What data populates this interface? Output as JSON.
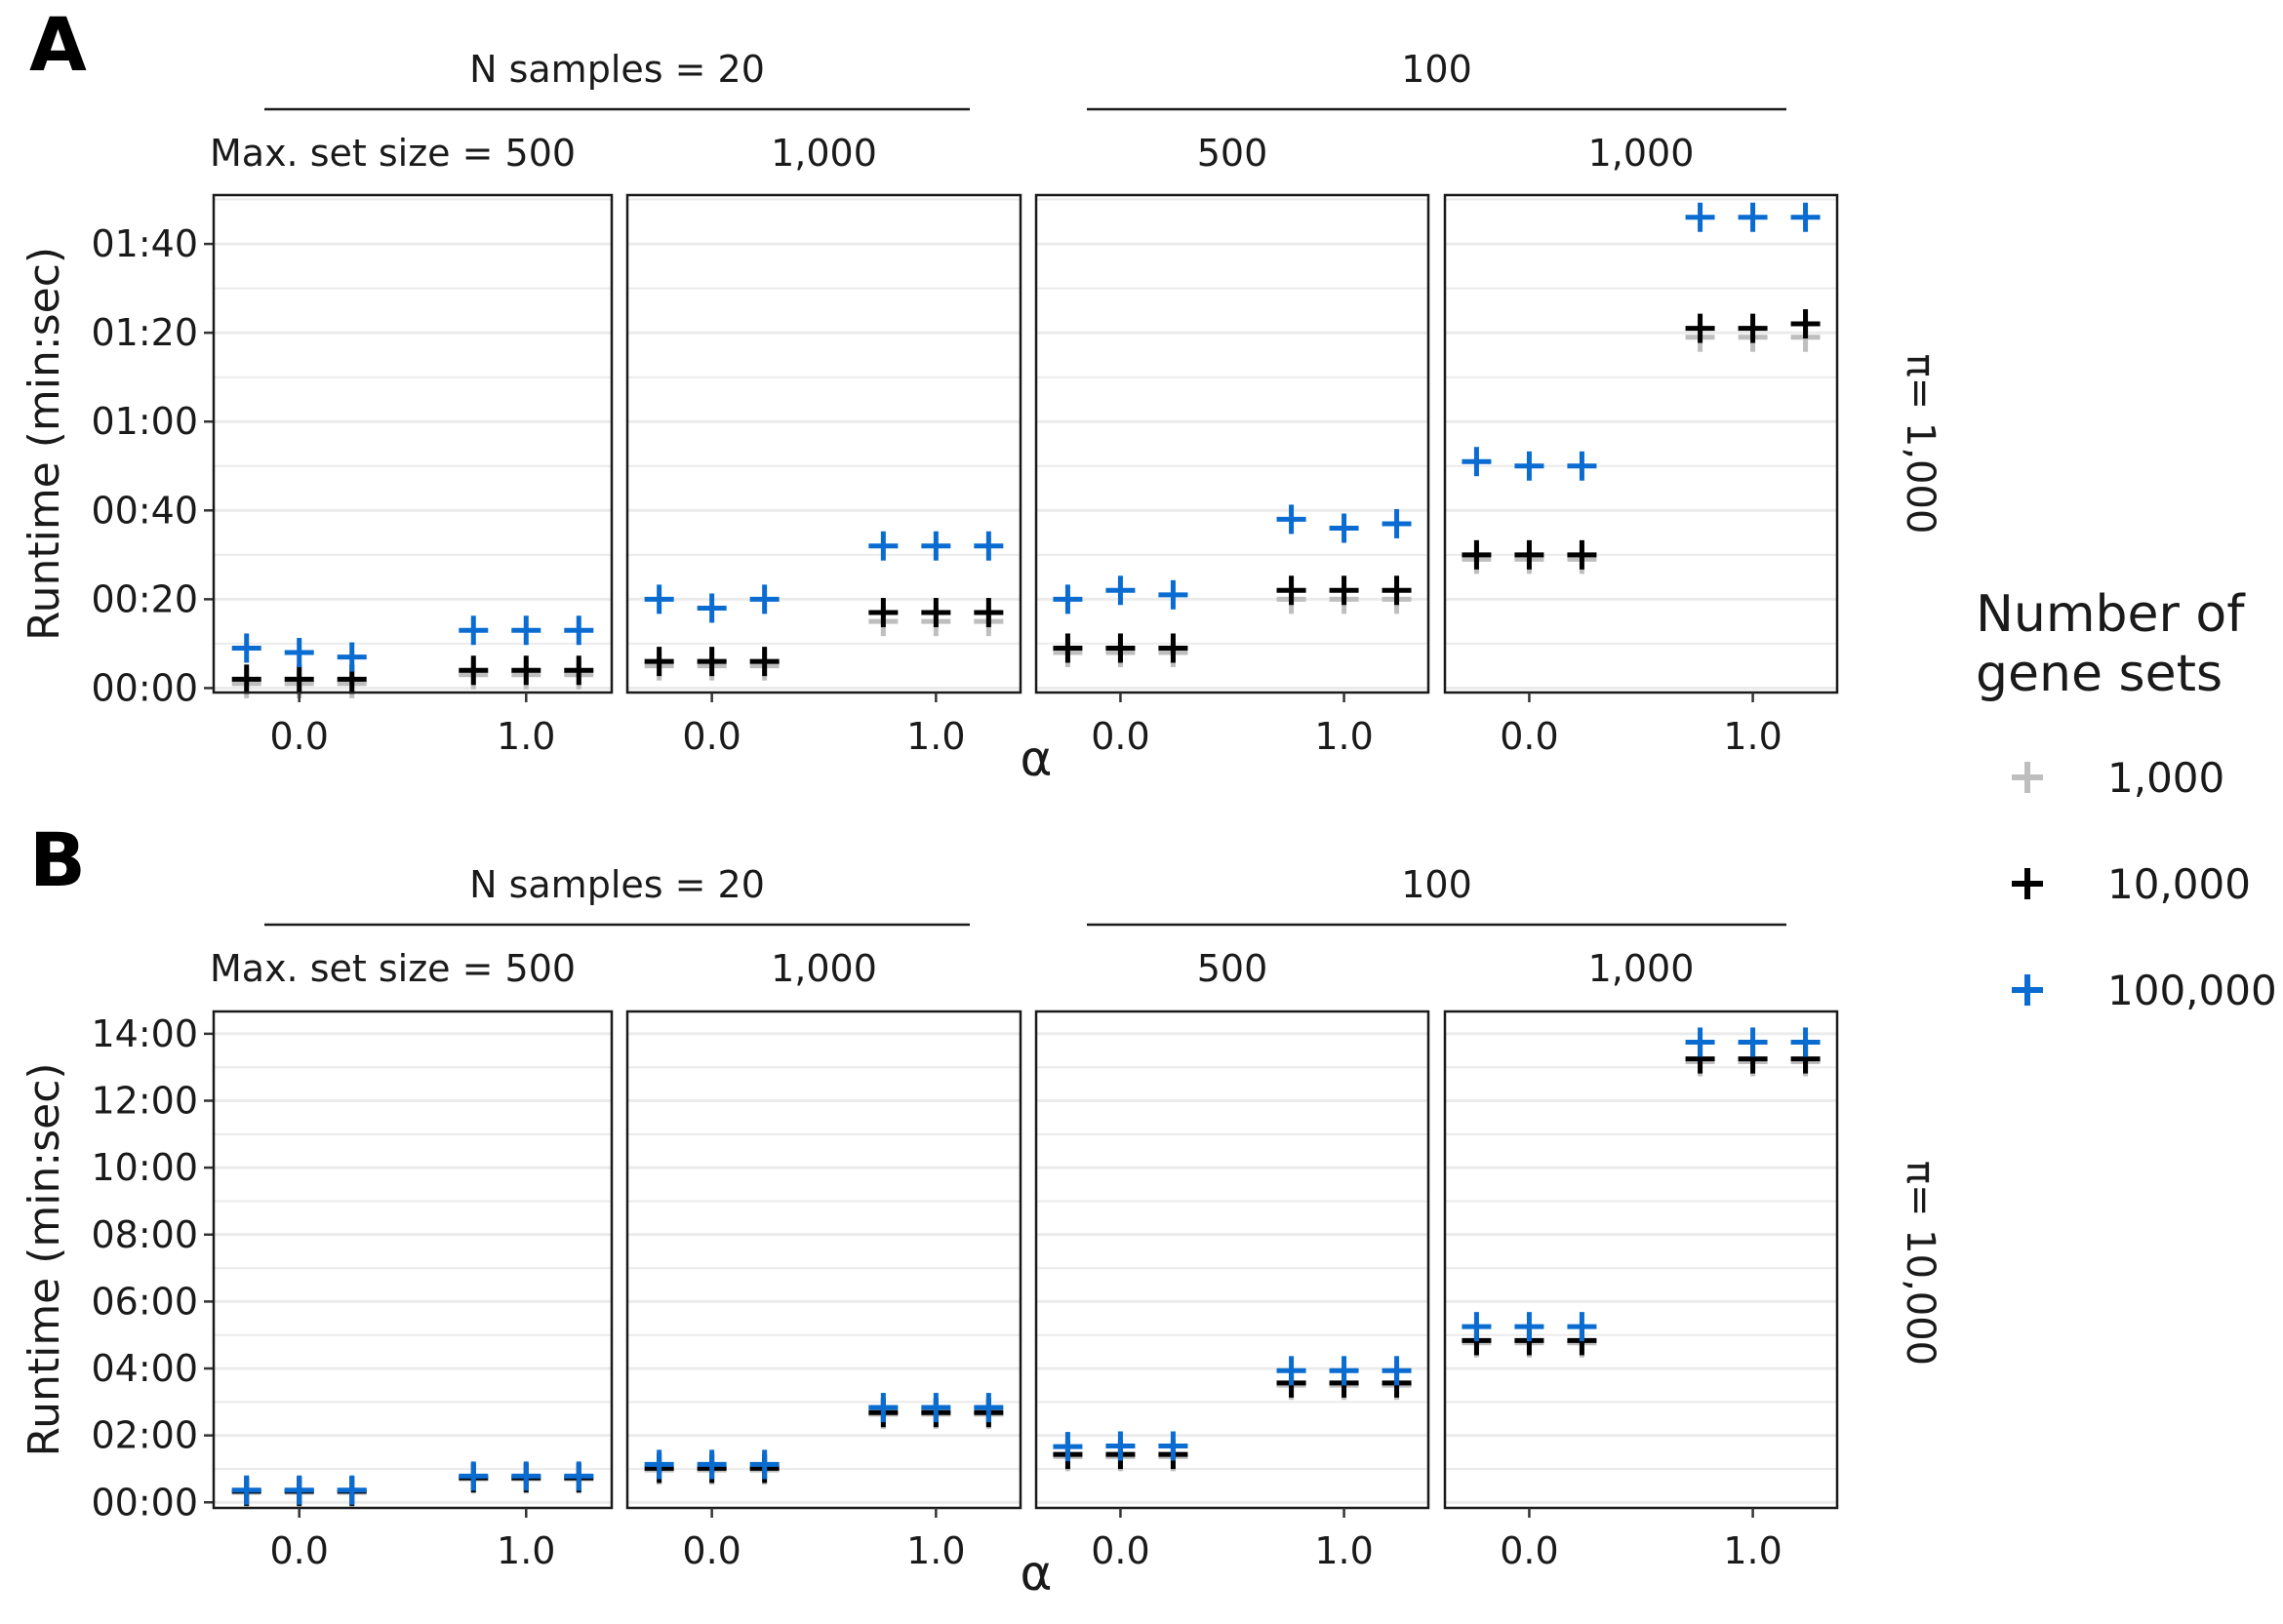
{
  "colors": {
    "1,000": "#bebebe",
    "10,000": "#000000",
    "100,000": "#0a6cd0",
    "grid": "#ebebeb",
    "panel_border": "#1a1a1a"
  },
  "legend": {
    "title_line1": "Number of",
    "title_line2": "gene sets",
    "entries": [
      {
        "label": "1,000",
        "color": "#bebebe"
      },
      {
        "label": "10,000",
        "color": "#000000"
      },
      {
        "label": "100,000",
        "color": "#0a6cd0"
      }
    ],
    "marker": "plus"
  },
  "chart_data": [
    {
      "type": "scatter",
      "panel_label": "A",
      "row_strip": "π= 1,000",
      "ylabel": "Runtime (min:sec)",
      "xlabel": "α",
      "y_unit": "seconds",
      "ylim": [
        -1,
        111
      ],
      "y_ticks": [
        0,
        20,
        40,
        60,
        80,
        100
      ],
      "y_tick_labels": [
        "00:00",
        "00:20",
        "00:40",
        "01:00",
        "01:20",
        "01:40"
      ],
      "x_categories": [
        "0.0",
        "1.0"
      ],
      "top_strips": [
        {
          "label": "N samples = 20",
          "facets": [
            0,
            1
          ]
        },
        {
          "label": "100",
          "facets": [
            2,
            3
          ]
        }
      ],
      "facets": [
        {
          "strip": "Max. set size = 500",
          "series": [
            {
              "name": "1,000",
              "points": [
                [
                  0.0,
                  1
                ],
                [
                  0.0,
                  1
                ],
                [
                  0.0,
                  1
                ],
                [
                  1.0,
                  3
                ],
                [
                  1.0,
                  3
                ],
                [
                  1.0,
                  3
                ]
              ]
            },
            {
              "name": "10,000",
              "points": [
                [
                  0.0,
                  2
                ],
                [
                  0.0,
                  2
                ],
                [
                  0.0,
                  2
                ],
                [
                  1.0,
                  4
                ],
                [
                  1.0,
                  4
                ],
                [
                  1.0,
                  4
                ]
              ]
            },
            {
              "name": "100,000",
              "points": [
                [
                  0.0,
                  9
                ],
                [
                  0.0,
                  8
                ],
                [
                  0.0,
                  7
                ],
                [
                  1.0,
                  13
                ],
                [
                  1.0,
                  13
                ],
                [
                  1.0,
                  13
                ]
              ]
            }
          ]
        },
        {
          "strip": "1,000",
          "series": [
            {
              "name": "1,000",
              "points": [
                [
                  0.0,
                  5
                ],
                [
                  0.0,
                  5
                ],
                [
                  0.0,
                  5
                ],
                [
                  1.0,
                  15
                ],
                [
                  1.0,
                  15
                ],
                [
                  1.0,
                  15
                ]
              ]
            },
            {
              "name": "10,000",
              "points": [
                [
                  0.0,
                  6
                ],
                [
                  0.0,
                  6
                ],
                [
                  0.0,
                  6
                ],
                [
                  1.0,
                  17
                ],
                [
                  1.0,
                  17
                ],
                [
                  1.0,
                  17
                ]
              ]
            },
            {
              "name": "100,000",
              "points": [
                [
                  0.0,
                  20
                ],
                [
                  0.0,
                  18
                ],
                [
                  0.0,
                  20
                ],
                [
                  1.0,
                  32
                ],
                [
                  1.0,
                  32
                ],
                [
                  1.0,
                  32
                ]
              ]
            }
          ]
        },
        {
          "strip": "500",
          "series": [
            {
              "name": "1,000",
              "points": [
                [
                  0.0,
                  8
                ],
                [
                  0.0,
                  8
                ],
                [
                  0.0,
                  8
                ],
                [
                  1.0,
                  20
                ],
                [
                  1.0,
                  20
                ],
                [
                  1.0,
                  20
                ]
              ]
            },
            {
              "name": "10,000",
              "points": [
                [
                  0.0,
                  9
                ],
                [
                  0.0,
                  9
                ],
                [
                  0.0,
                  9
                ],
                [
                  1.0,
                  22
                ],
                [
                  1.0,
                  22
                ],
                [
                  1.0,
                  22
                ]
              ]
            },
            {
              "name": "100,000",
              "points": [
                [
                  0.0,
                  20
                ],
                [
                  0.0,
                  22
                ],
                [
                  0.0,
                  21
                ],
                [
                  1.0,
                  38
                ],
                [
                  1.0,
                  36
                ],
                [
                  1.0,
                  37
                ]
              ]
            }
          ]
        },
        {
          "strip": "1,000",
          "series": [
            {
              "name": "1,000",
              "points": [
                [
                  0.0,
                  29
                ],
                [
                  0.0,
                  29
                ],
                [
                  0.0,
                  29
                ],
                [
                  1.0,
                  79
                ],
                [
                  1.0,
                  79
                ],
                [
                  1.0,
                  79
                ]
              ]
            },
            {
              "name": "10,000",
              "points": [
                [
                  0.0,
                  30
                ],
                [
                  0.0,
                  30
                ],
                [
                  0.0,
                  30
                ],
                [
                  1.0,
                  81
                ],
                [
                  1.0,
                  81
                ],
                [
                  1.0,
                  82
                ]
              ]
            },
            {
              "name": "100,000",
              "points": [
                [
                  0.0,
                  51
                ],
                [
                  0.0,
                  50
                ],
                [
                  0.0,
                  50
                ],
                [
                  1.0,
                  106
                ],
                [
                  1.0,
                  106
                ],
                [
                  1.0,
                  106
                ]
              ]
            }
          ]
        }
      ]
    },
    {
      "type": "scatter",
      "panel_label": "B",
      "row_strip": "π= 10,000",
      "ylabel": "Runtime (min:sec)",
      "xlabel": "α",
      "y_unit": "seconds",
      "ylim": [
        -10,
        880
      ],
      "y_ticks": [
        0,
        120,
        240,
        360,
        480,
        600,
        720,
        840
      ],
      "y_tick_labels": [
        "00:00",
        "02:00",
        "04:00",
        "06:00",
        "08:00",
        "10:00",
        "12:00",
        "14:00"
      ],
      "x_categories": [
        "0.0",
        "1.0"
      ],
      "top_strips": [
        {
          "label": "N samples = 20",
          "facets": [
            0,
            1
          ]
        },
        {
          "label": "100",
          "facets": [
            2,
            3
          ]
        }
      ],
      "facets": [
        {
          "strip": "Max. set size = 500",
          "series": [
            {
              "name": "1,000",
              "points": [
                [
                  0.0,
                  18
                ],
                [
                  0.0,
                  18
                ],
                [
                  0.0,
                  18
                ],
                [
                  1.0,
                  42
                ],
                [
                  1.0,
                  42
                ],
                [
                  1.0,
                  42
                ]
              ]
            },
            {
              "name": "10,000",
              "points": [
                [
                  0.0,
                  20
                ],
                [
                  0.0,
                  20
                ],
                [
                  0.0,
                  20
                ],
                [
                  1.0,
                  44
                ],
                [
                  1.0,
                  44
                ],
                [
                  1.0,
                  44
                ]
              ]
            },
            {
              "name": "100,000",
              "points": [
                [
                  0.0,
                  22
                ],
                [
                  0.0,
                  22
                ],
                [
                  0.0,
                  22
                ],
                [
                  1.0,
                  47
                ],
                [
                  1.0,
                  47
                ],
                [
                  1.0,
                  47
                ]
              ]
            }
          ]
        },
        {
          "strip": "1,000",
          "series": [
            {
              "name": "1,000",
              "points": [
                [
                  0.0,
                  58
                ],
                [
                  0.0,
                  58
                ],
                [
                  0.0,
                  58
                ],
                [
                  1.0,
                  158
                ],
                [
                  1.0,
                  158
                ],
                [
                  1.0,
                  158
                ]
              ]
            },
            {
              "name": "10,000",
              "points": [
                [
                  0.0,
                  61
                ],
                [
                  0.0,
                  61
                ],
                [
                  0.0,
                  61
                ],
                [
                  1.0,
                  161
                ],
                [
                  1.0,
                  161
                ],
                [
                  1.0,
                  161
                ]
              ]
            },
            {
              "name": "100,000",
              "points": [
                [
                  0.0,
                  68
                ],
                [
                  0.0,
                  68
                ],
                [
                  0.0,
                  68
                ],
                [
                  1.0,
                  170
                ],
                [
                  1.0,
                  170
                ],
                [
                  1.0,
                  170
                ]
              ]
            }
          ]
        },
        {
          "strip": "500",
          "series": [
            {
              "name": "1,000",
              "points": [
                [
                  0.0,
                  82
                ],
                [
                  0.0,
                  82
                ],
                [
                  0.0,
                  82
                ],
                [
                  1.0,
                  210
                ],
                [
                  1.0,
                  210
                ],
                [
                  1.0,
                  210
                ]
              ]
            },
            {
              "name": "10,000",
              "points": [
                [
                  0.0,
                  86
                ],
                [
                  0.0,
                  86
                ],
                [
                  0.0,
                  86
                ],
                [
                  1.0,
                  214
                ],
                [
                  1.0,
                  214
                ],
                [
                  1.0,
                  214
                ]
              ]
            },
            {
              "name": "100,000",
              "points": [
                [
                  0.0,
                  100
                ],
                [
                  0.0,
                  101
                ],
                [
                  0.0,
                  101
                ],
                [
                  1.0,
                  236
                ],
                [
                  1.0,
                  236
                ],
                [
                  1.0,
                  236
                ]
              ]
            }
          ]
        },
        {
          "strip": "1,000",
          "series": [
            {
              "name": "1,000",
              "points": [
                [
                  0.0,
                  286
                ],
                [
                  0.0,
                  286
                ],
                [
                  0.0,
                  286
                ],
                [
                  1.0,
                  790
                ],
                [
                  1.0,
                  790
                ],
                [
                  1.0,
                  790
                ]
              ]
            },
            {
              "name": "10,000",
              "points": [
                [
                  0.0,
                  290
                ],
                [
                  0.0,
                  290
                ],
                [
                  0.0,
                  290
                ],
                [
                  1.0,
                  795
                ],
                [
                  1.0,
                  795
                ],
                [
                  1.0,
                  795
                ]
              ]
            },
            {
              "name": "100,000",
              "points": [
                [
                  0.0,
                  315
                ],
                [
                  0.0,
                  315
                ],
                [
                  0.0,
                  315
                ],
                [
                  1.0,
                  825
                ],
                [
                  1.0,
                  825
                ],
                [
                  1.0,
                  825
                ]
              ]
            }
          ]
        }
      ]
    }
  ]
}
